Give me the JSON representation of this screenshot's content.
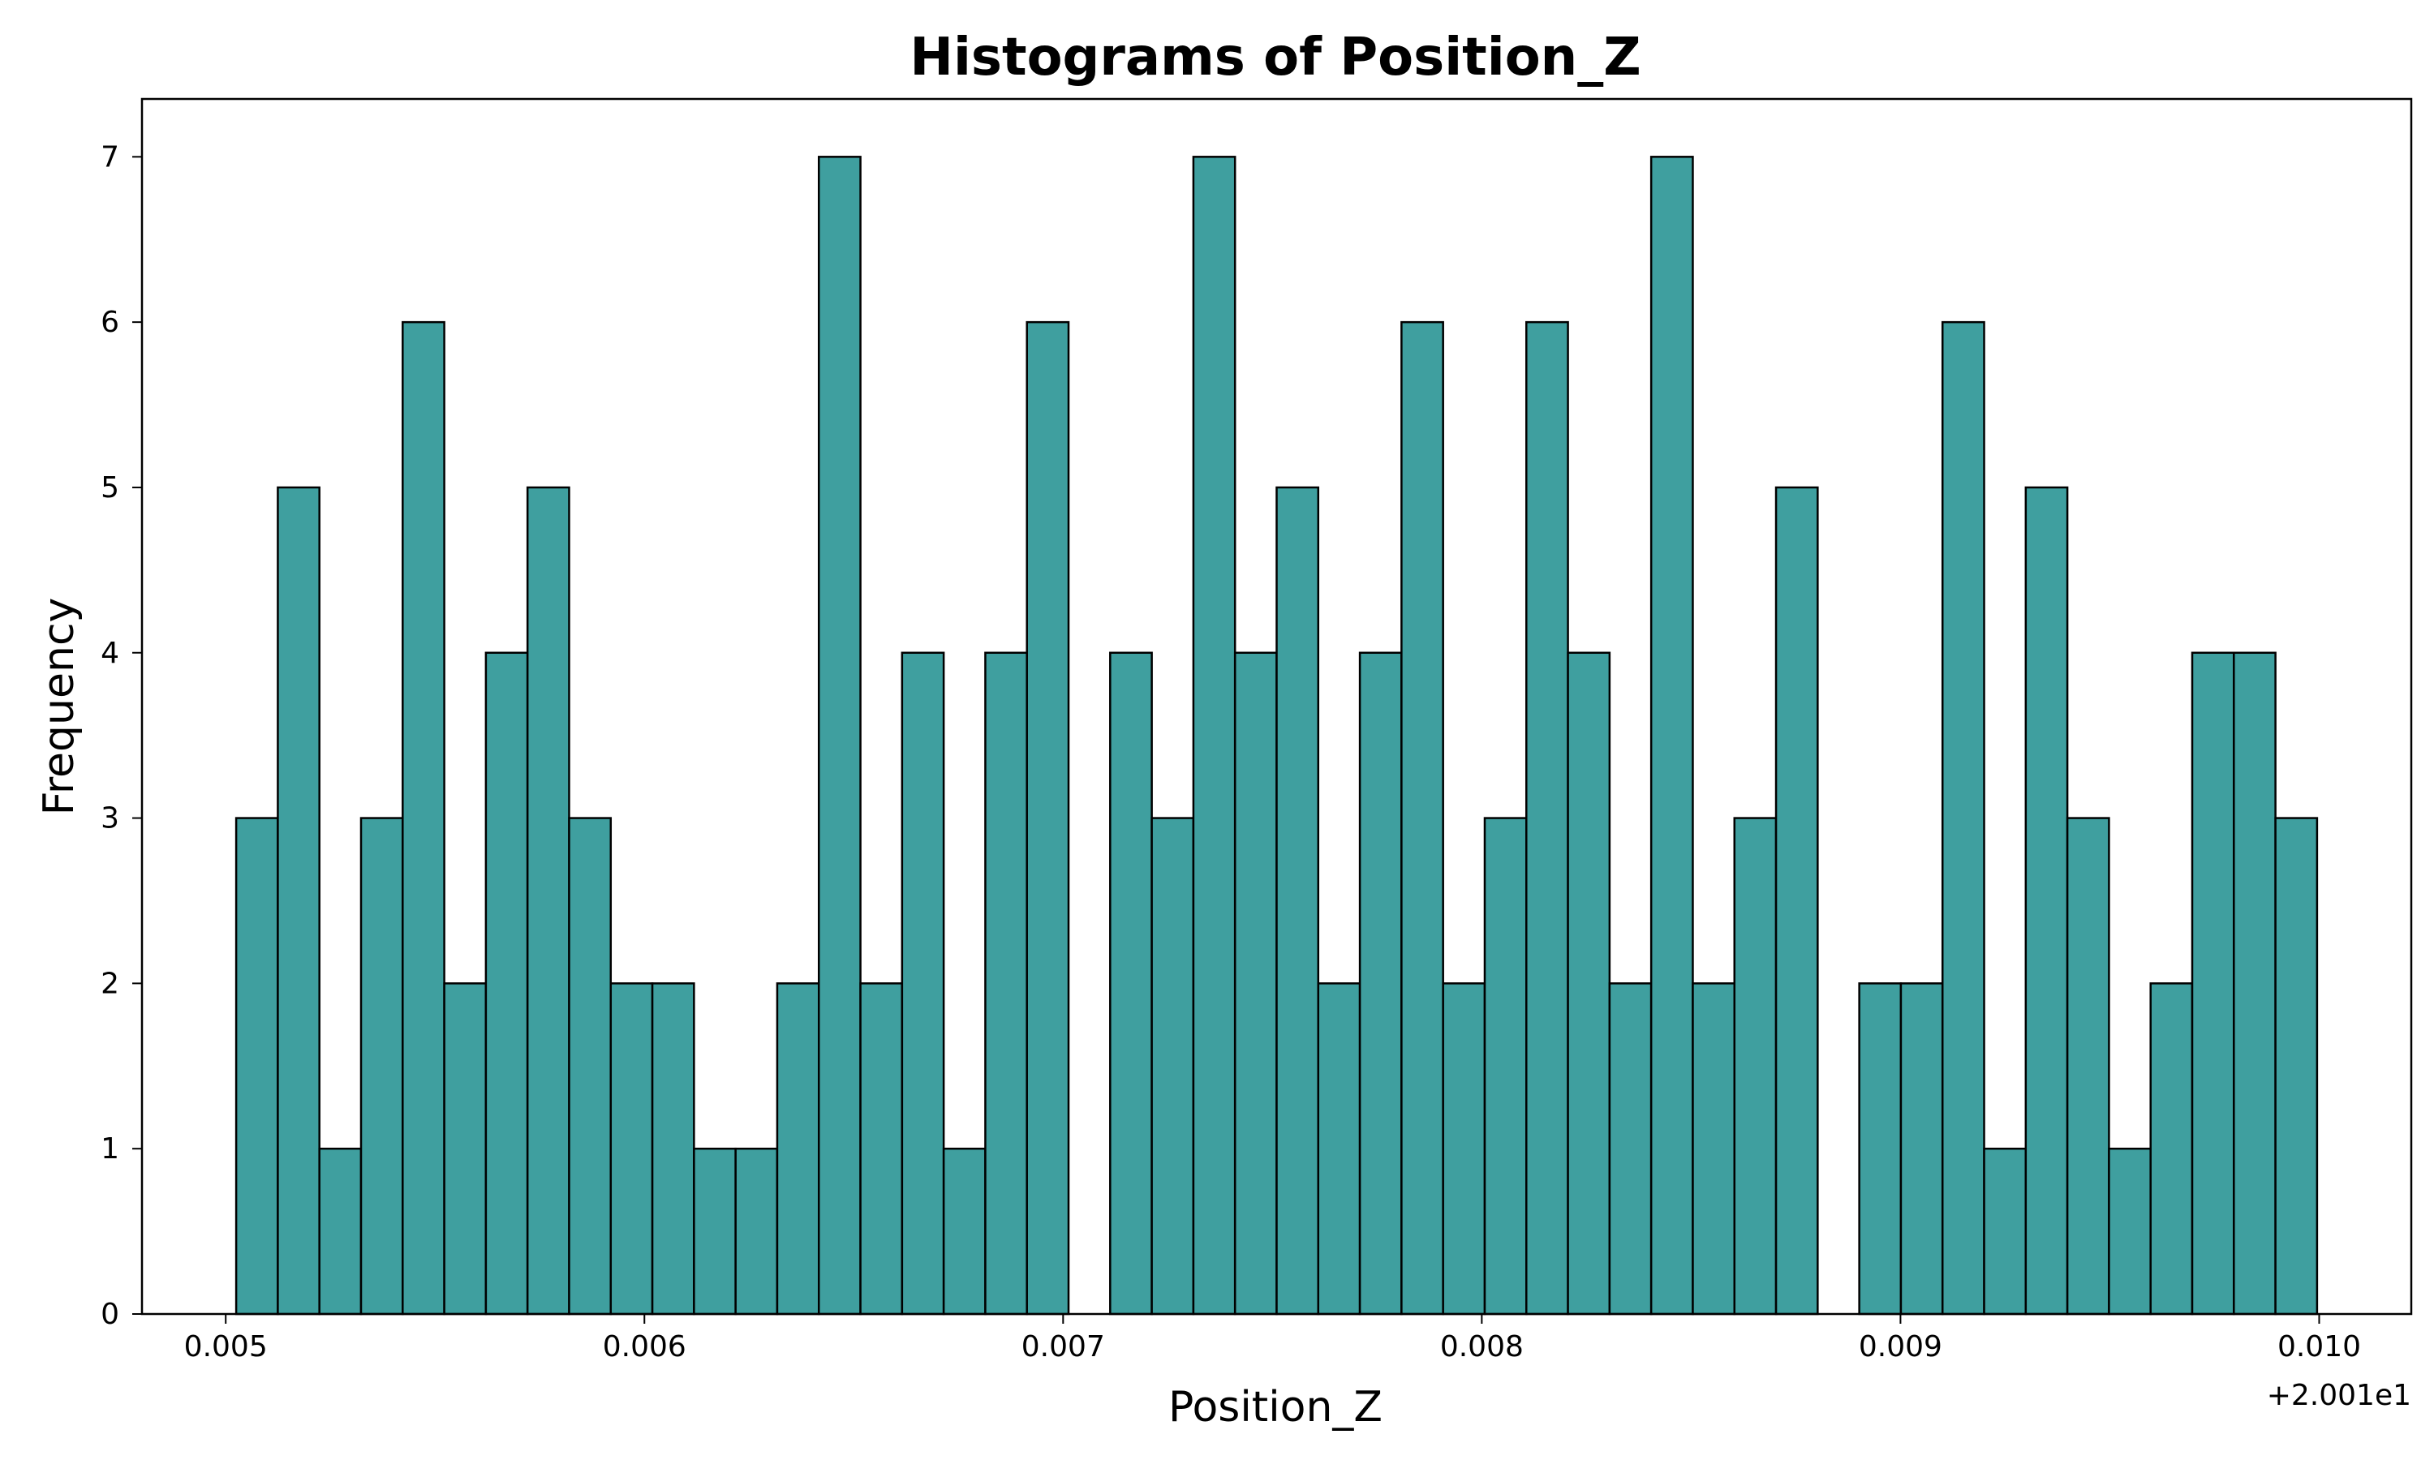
{
  "chart_data": {
    "type": "bar",
    "title": "Histograms of Position_Z",
    "xlabel": "Position_Z",
    "ylabel": "Frequency",
    "x_offset_label": "+2.001e1",
    "x_offset": 20.01,
    "xlim": [
      0.0048,
      0.01022
    ],
    "ylim": [
      0,
      7.35
    ],
    "bin_start": 0.005025,
    "bin_width": 9.94e-05,
    "values": [
      3,
      5,
      1,
      3,
      6,
      2,
      4,
      5,
      3,
      2,
      2,
      1,
      1,
      2,
      7,
      2,
      4,
      1,
      4,
      6,
      0,
      4,
      3,
      7,
      4,
      5,
      2,
      4,
      6,
      2,
      3,
      6,
      4,
      2,
      7,
      2,
      3,
      5,
      0,
      2,
      2,
      6,
      1,
      5,
      3,
      1,
      2,
      4,
      4,
      3
    ],
    "x_ticks": [
      0.005,
      0.006,
      0.007,
      0.008,
      0.009,
      0.01
    ],
    "x_tick_labels": [
      "0.005",
      "0.006",
      "0.007",
      "0.008",
      "0.009",
      "0.010"
    ],
    "y_ticks": [
      0,
      1,
      2,
      3,
      4,
      5,
      6,
      7
    ],
    "y_tick_labels": [
      "0",
      "1",
      "2",
      "3",
      "4",
      "5",
      "6",
      "7"
    ],
    "bar_color": "#3f9f9f",
    "edge_color": "#000000",
    "grid": false,
    "legend": "none"
  }
}
